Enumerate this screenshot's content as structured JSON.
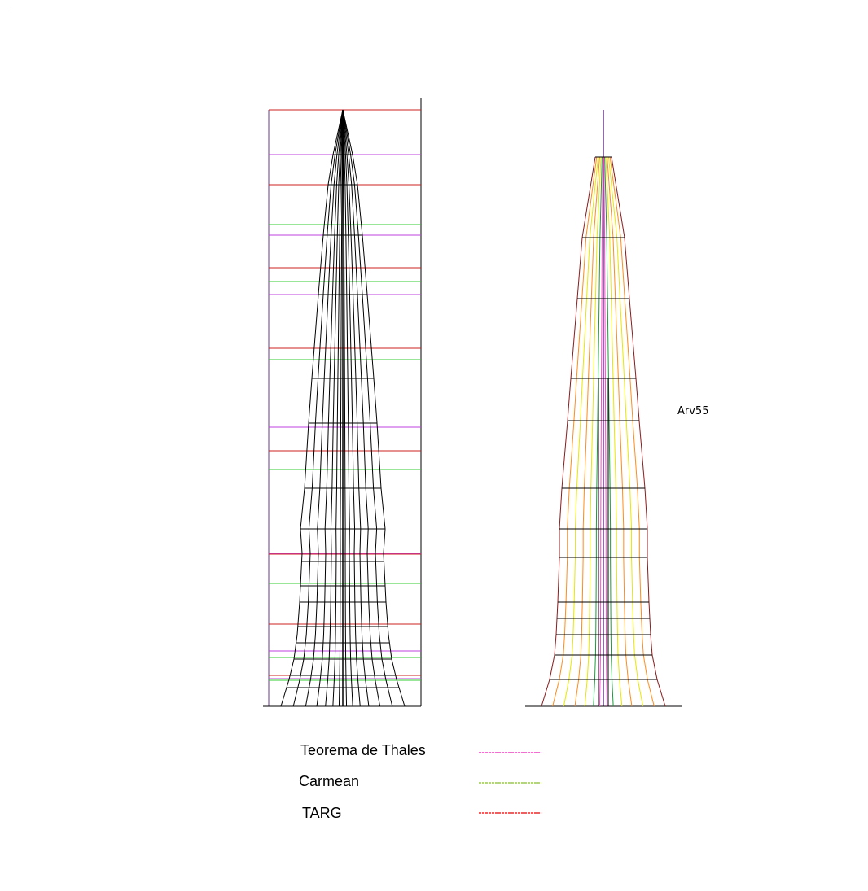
{
  "tree_label": "Arv55",
  "legend": {
    "thales": {
      "label": "Teorema de Thales",
      "color": "#ff33cc"
    },
    "carmean": {
      "label": "Carmean",
      "color": "#99cc44"
    },
    "targ": {
      "label": "TARG",
      "color": "#ff2020"
    }
  },
  "colors": {
    "wireframe": "#000000",
    "axis_frame": "#6a3a8a",
    "thales_line": "#c040e0",
    "carmean_line": "#33cc33",
    "targ_line": "#cc2222",
    "outline_dark_red": "#8b1a1a",
    "orange": "#ff8c1a",
    "yellow": "#e8e800",
    "green": "#1a9a3a",
    "pink": "#ff44cc"
  }
}
